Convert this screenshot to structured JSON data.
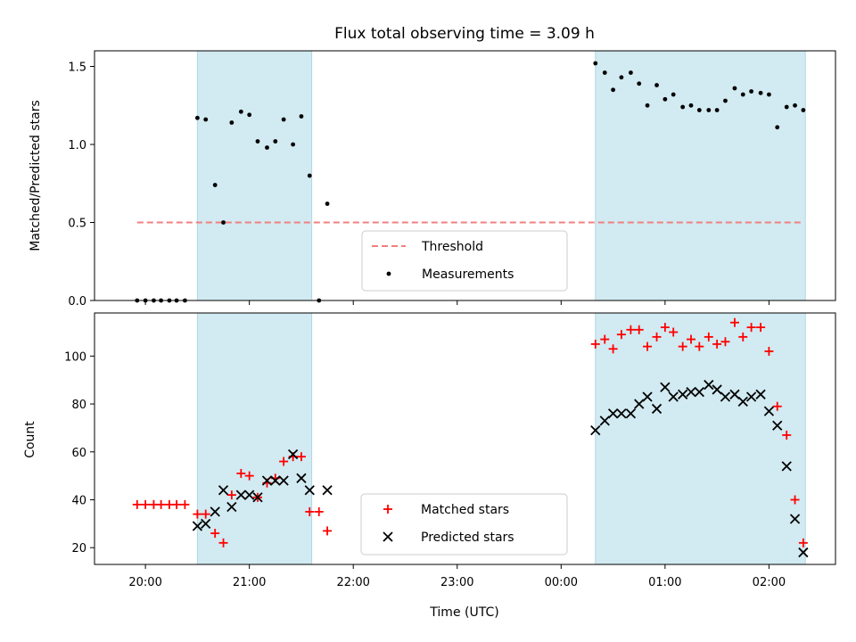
{
  "chart_data": [
    {
      "type": "scatter",
      "title": "Flux total observing time = 3.09 h",
      "ylabel": "Matched/Predicted stars",
      "xlabel": "",
      "xlim": [
        19.51,
        26.64
      ],
      "ylim": [
        0,
        1.6
      ],
      "yticks": [
        0.0,
        0.5,
        1.0,
        1.5
      ],
      "ytick_labels": [
        "0.0",
        "0.5",
        "1.0",
        "1.5"
      ],
      "xticks": [
        20,
        21,
        22,
        23,
        24,
        25,
        26
      ],
      "highlight_spans": [
        [
          20.5,
          21.6
        ],
        [
          24.33,
          26.35
        ]
      ],
      "highlight_color": "#add8e6",
      "threshold": {
        "name": "Threshold",
        "value": 0.5,
        "x_range": [
          19.92,
          26.33
        ],
        "color": "#f08080"
      },
      "series": [
        {
          "name": "Measurements",
          "color": "#000000",
          "points": [
            [
              19.92,
              0.0
            ],
            [
              20.0,
              0.0
            ],
            [
              20.08,
              0.0
            ],
            [
              20.15,
              0.0
            ],
            [
              20.23,
              0.0
            ],
            [
              20.3,
              0.0
            ],
            [
              20.38,
              0.0
            ],
            [
              20.5,
              1.17
            ],
            [
              20.58,
              1.16
            ],
            [
              20.67,
              0.74
            ],
            [
              20.75,
              0.5
            ],
            [
              20.83,
              1.14
            ],
            [
              20.92,
              1.21
            ],
            [
              21.0,
              1.19
            ],
            [
              21.08,
              1.02
            ],
            [
              21.17,
              0.98
            ],
            [
              21.25,
              1.02
            ],
            [
              21.33,
              1.16
            ],
            [
              21.42,
              1.0
            ],
            [
              21.5,
              1.18
            ],
            [
              21.58,
              0.8
            ],
            [
              21.67,
              0.0
            ],
            [
              21.75,
              0.62
            ],
            [
              24.33,
              1.52
            ],
            [
              24.42,
              1.46
            ],
            [
              24.5,
              1.35
            ],
            [
              24.58,
              1.43
            ],
            [
              24.67,
              1.46
            ],
            [
              24.75,
              1.39
            ],
            [
              24.83,
              1.25
            ],
            [
              24.92,
              1.38
            ],
            [
              25.0,
              1.29
            ],
            [
              25.08,
              1.32
            ],
            [
              25.17,
              1.24
            ],
            [
              25.25,
              1.25
            ],
            [
              25.33,
              1.22
            ],
            [
              25.42,
              1.22
            ],
            [
              25.5,
              1.22
            ],
            [
              25.58,
              1.28
            ],
            [
              25.67,
              1.36
            ],
            [
              25.75,
              1.32
            ],
            [
              25.83,
              1.34
            ],
            [
              25.92,
              1.33
            ],
            [
              26.0,
              1.32
            ],
            [
              26.08,
              1.11
            ],
            [
              26.17,
              1.24
            ],
            [
              26.25,
              1.25
            ],
            [
              26.33,
              1.22
            ]
          ]
        }
      ],
      "legend": {
        "position": "bottom-center",
        "entries": [
          "Threshold",
          "Measurements"
        ]
      }
    },
    {
      "type": "scatter",
      "title": "",
      "ylabel": "Count",
      "xlabel": "Time (UTC)",
      "xlim": [
        19.51,
        26.64
      ],
      "ylim": [
        13,
        118
      ],
      "yticks": [
        20,
        40,
        60,
        80,
        100
      ],
      "ytick_labels": [
        "20",
        "40",
        "60",
        "80",
        "100"
      ],
      "xticks": [
        20,
        21,
        22,
        23,
        24,
        25,
        26
      ],
      "xtick_labels": [
        "20:00",
        "21:00",
        "22:00",
        "23:00",
        "00:00",
        "01:00",
        "02:00"
      ],
      "highlight_spans": [
        [
          20.5,
          21.6
        ],
        [
          24.33,
          26.35
        ]
      ],
      "highlight_color": "#add8e6",
      "series": [
        {
          "name": "Matched stars",
          "marker": "+",
          "color": "#ff0000",
          "points": [
            [
              19.92,
              38
            ],
            [
              20.0,
              38
            ],
            [
              20.08,
              38
            ],
            [
              20.15,
              38
            ],
            [
              20.23,
              38
            ],
            [
              20.3,
              38
            ],
            [
              20.38,
              38
            ],
            [
              20.5,
              34
            ],
            [
              20.58,
              34
            ],
            [
              20.67,
              26
            ],
            [
              20.75,
              22
            ],
            [
              20.83,
              42
            ],
            [
              20.92,
              51
            ],
            [
              21.0,
              50
            ],
            [
              21.08,
              41
            ],
            [
              21.17,
              47
            ],
            [
              21.25,
              49
            ],
            [
              21.33,
              56
            ],
            [
              21.42,
              58
            ],
            [
              21.5,
              58
            ],
            [
              21.58,
              35
            ],
            [
              21.67,
              35
            ],
            [
              21.75,
              27
            ],
            [
              24.33,
              105
            ],
            [
              24.42,
              107
            ],
            [
              24.5,
              103
            ],
            [
              24.58,
              109
            ],
            [
              24.67,
              111
            ],
            [
              24.75,
              111
            ],
            [
              24.83,
              104
            ],
            [
              24.92,
              108
            ],
            [
              25.0,
              112
            ],
            [
              25.08,
              110
            ],
            [
              25.17,
              104
            ],
            [
              25.25,
              107
            ],
            [
              25.33,
              104
            ],
            [
              25.42,
              108
            ],
            [
              25.5,
              105
            ],
            [
              25.58,
              106
            ],
            [
              25.67,
              114
            ],
            [
              25.75,
              108
            ],
            [
              25.83,
              112
            ],
            [
              25.92,
              112
            ],
            [
              26.0,
              102
            ],
            [
              26.08,
              79
            ],
            [
              26.17,
              67
            ],
            [
              26.25,
              40
            ],
            [
              26.33,
              22
            ]
          ]
        },
        {
          "name": "Predicted stars",
          "marker": "x",
          "color": "#000000",
          "points": [
            [
              20.5,
              29
            ],
            [
              20.58,
              30
            ],
            [
              20.67,
              35
            ],
            [
              20.75,
              44
            ],
            [
              20.83,
              37
            ],
            [
              20.92,
              42
            ],
            [
              21.0,
              42
            ],
            [
              21.08,
              41
            ],
            [
              21.17,
              48
            ],
            [
              21.25,
              48
            ],
            [
              21.33,
              48
            ],
            [
              21.42,
              59
            ],
            [
              21.5,
              49
            ],
            [
              21.58,
              44
            ],
            [
              21.75,
              44
            ],
            [
              24.33,
              69
            ],
            [
              24.42,
              73
            ],
            [
              24.5,
              76
            ],
            [
              24.58,
              76
            ],
            [
              24.67,
              76
            ],
            [
              24.75,
              80
            ],
            [
              24.83,
              83
            ],
            [
              24.92,
              78
            ],
            [
              25.0,
              87
            ],
            [
              25.08,
              83
            ],
            [
              25.17,
              84
            ],
            [
              25.25,
              85
            ],
            [
              25.33,
              85
            ],
            [
              25.42,
              88
            ],
            [
              25.5,
              86
            ],
            [
              25.58,
              83
            ],
            [
              25.67,
              84
            ],
            [
              25.75,
              81
            ],
            [
              25.83,
              83
            ],
            [
              25.92,
              84
            ],
            [
              26.0,
              77
            ],
            [
              26.08,
              71
            ],
            [
              26.17,
              54
            ],
            [
              26.25,
              32
            ],
            [
              26.33,
              18
            ]
          ]
        }
      ],
      "legend": {
        "position": "bottom-center",
        "entries": [
          "Matched stars",
          "Predicted stars"
        ]
      }
    }
  ]
}
